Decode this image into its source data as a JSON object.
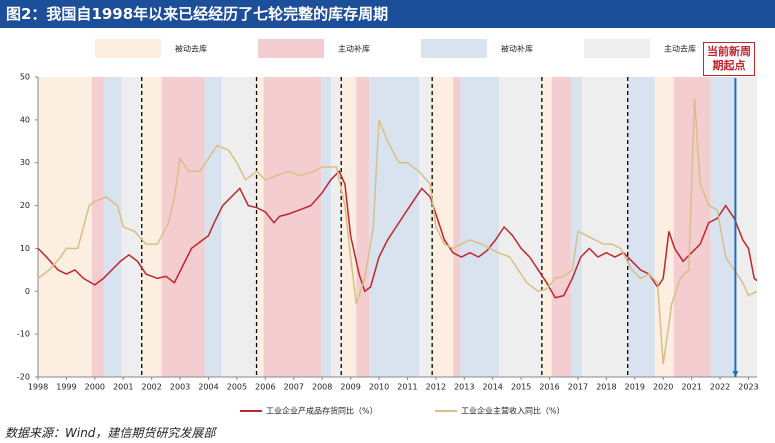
{
  "chart_data": {
    "type": "line",
    "title": "图2：我国自1998年以来已经经历了七轮完整的库存周期",
    "source": "数据来源：Wind，建信期货研究发展部",
    "annotation": "当前新周期起点",
    "annotation_x": 2022.54,
    "annotation_color": "#1f6fb5",
    "xlim": [
      1998,
      2023.3
    ],
    "ylim": [
      -20,
      50
    ],
    "yticks": [
      -20,
      -10,
      0,
      10,
      20,
      30,
      40,
      50
    ],
    "xticks": [
      1998,
      1999,
      2000,
      2001,
      2002,
      2003,
      2004,
      2005,
      2006,
      2007,
      2008,
      2009,
      2010,
      2011,
      2012,
      2013,
      2014,
      2015,
      2016,
      2017,
      2018,
      2019,
      2020,
      2021,
      2022,
      2023
    ],
    "cycle_boundaries": [
      2001.65,
      2005.69,
      2008.67,
      2011.87,
      2015.73,
      2018.75
    ],
    "phases": [
      {
        "name": "被动去库",
        "color": "#fdeee2",
        "spans": [
          [
            1998,
            1999.9
          ],
          [
            2001.65,
            2002.35
          ],
          [
            2005.69,
            2005.94
          ],
          [
            2008.67,
            2009.2
          ],
          [
            2011.87,
            2012.61
          ],
          [
            2015.73,
            2016.08
          ],
          [
            2019.7,
            2020.37
          ]
        ]
      },
      {
        "name": "主动补库",
        "color": "#f4cdd1",
        "spans": [
          [
            1999.9,
            2000.32
          ],
          [
            2002.35,
            2003.86
          ],
          [
            2005.94,
            2007.97
          ],
          [
            2009.2,
            2009.66
          ],
          [
            2012.61,
            2012.85
          ],
          [
            2016.08,
            2016.75
          ],
          [
            2020.37,
            2021.67
          ]
        ]
      },
      {
        "name": "被动补库",
        "color": "#d9e3f0",
        "spans": [
          [
            2000.32,
            2000.95
          ],
          [
            2003.86,
            2004.46
          ],
          [
            2007.97,
            2008.32
          ],
          [
            2009.66,
            2011.41
          ],
          [
            2012.85,
            2014.22
          ],
          [
            2016.75,
            2017.14
          ],
          [
            2018.75,
            2019.7
          ],
          [
            2021.67,
            2022.54
          ]
        ]
      },
      {
        "name": "主动去库",
        "color": "#eeeeee",
        "spans": [
          [
            2000.95,
            2001.65
          ],
          [
            2004.46,
            2005.69
          ],
          [
            2008.32,
            2008.67
          ],
          [
            2011.41,
            2011.87
          ],
          [
            2014.22,
            2015.73
          ],
          [
            2017.14,
            2018.75
          ],
          [
            2022.54,
            2023.3
          ]
        ]
      }
    ],
    "series": [
      {
        "name": "工业企业产成品存货同比（%）",
        "color": "#c0272d",
        "x": [
          1998.0,
          1998.3,
          1998.7,
          1999.0,
          1999.3,
          1999.6,
          2000.0,
          2000.3,
          2000.6,
          2000.9,
          2001.2,
          2001.5,
          2001.8,
          2002.2,
          2002.5,
          2002.8,
          2003.1,
          2003.4,
          2003.8,
          2004.0,
          2004.2,
          2004.5,
          2004.8,
          2005.1,
          2005.4,
          2005.7,
          2006.0,
          2006.3,
          2006.5,
          2006.8,
          2007.2,
          2007.6,
          2008.0,
          2008.3,
          2008.6,
          2008.8,
          2009.0,
          2009.3,
          2009.5,
          2009.7,
          2010.0,
          2010.3,
          2010.6,
          2010.9,
          2011.2,
          2011.5,
          2011.8,
          2012.0,
          2012.3,
          2012.6,
          2012.9,
          2013.2,
          2013.5,
          2013.8,
          2014.1,
          2014.4,
          2014.7,
          2015.0,
          2015.3,
          2015.6,
          2015.9,
          2016.2,
          2016.5,
          2016.8,
          2017.1,
          2017.4,
          2017.7,
          2018.0,
          2018.3,
          2018.6,
          2018.9,
          2019.2,
          2019.5,
          2019.8,
          2020.0,
          2020.2,
          2020.4,
          2020.7,
          2021.0,
          2021.3,
          2021.6,
          2021.9,
          2022.2,
          2022.5,
          2022.8,
          2023.0,
          2023.2,
          2023.3
        ],
        "values": [
          10,
          8,
          5,
          4,
          5,
          3,
          1.5,
          3,
          5,
          7,
          8.5,
          7,
          4,
          3,
          3.5,
          2,
          6,
          10,
          12,
          13,
          16,
          20,
          22,
          24,
          20,
          19.5,
          18.5,
          16,
          17.5,
          18,
          19,
          20,
          23,
          26,
          28,
          25,
          13,
          4,
          0,
          1,
          8,
          12,
          15,
          18,
          21,
          24,
          22,
          18,
          12,
          9,
          8,
          9,
          8,
          9.5,
          12,
          15,
          13,
          10,
          8,
          5,
          2,
          -1.5,
          -1,
          3,
          8,
          10,
          8,
          9,
          8,
          9,
          7,
          5,
          4,
          1,
          3,
          14,
          10,
          7,
          9,
          11,
          16,
          17,
          20,
          17,
          12,
          10,
          3,
          2.5
        ]
      },
      {
        "name": "工业企业主营收入同比（%）",
        "color": "#d9bf86",
        "x": [
          1998.0,
          1998.4,
          1998.8,
          1999.0,
          1999.4,
          1999.8,
          2000.0,
          2000.4,
          2000.8,
          2001.0,
          2001.4,
          2001.8,
          2002.2,
          2002.6,
          2002.8,
          2003.0,
          2003.3,
          2003.7,
          2004.0,
          2004.3,
          2004.7,
          2005.0,
          2005.3,
          2005.7,
          2006.0,
          2006.4,
          2006.8,
          2007.2,
          2007.7,
          2008.0,
          2008.5,
          2008.8,
          2009.0,
          2009.2,
          2009.5,
          2009.8,
          2010.0,
          2010.3,
          2010.7,
          2011.0,
          2011.4,
          2011.8,
          2012.0,
          2012.3,
          2012.6,
          2012.9,
          2013.2,
          2013.6,
          2013.9,
          2014.2,
          2014.6,
          2014.9,
          2015.2,
          2015.6,
          2015.9,
          2016.2,
          2016.5,
          2016.8,
          2017.0,
          2017.3,
          2017.6,
          2017.9,
          2018.2,
          2018.5,
          2018.9,
          2019.2,
          2019.5,
          2019.8,
          2020.0,
          2020.3,
          2020.6,
          2020.9,
          2021.1,
          2021.3,
          2021.6,
          2021.9,
          2022.2,
          2022.5,
          2022.8,
          2023.0,
          2023.3
        ],
        "values": [
          3,
          5,
          8,
          10,
          10,
          20,
          21,
          22,
          20,
          15,
          14,
          11,
          11,
          16,
          22,
          31,
          28,
          28,
          31,
          34,
          33,
          30,
          26,
          28,
          26,
          27,
          28,
          27,
          28,
          29,
          29,
          20,
          8,
          -3,
          3,
          15,
          40,
          35,
          30,
          30,
          28,
          25,
          15,
          11,
          10,
          11,
          12,
          11,
          10,
          9,
          8,
          5,
          2,
          0,
          0.5,
          3,
          3.5,
          5,
          14,
          13,
          12,
          11,
          11,
          10,
          5,
          3,
          4,
          2,
          -17,
          -3,
          3,
          5,
          45,
          25,
          20,
          19,
          8,
          5,
          2,
          -1,
          0
        ]
      }
    ]
  }
}
